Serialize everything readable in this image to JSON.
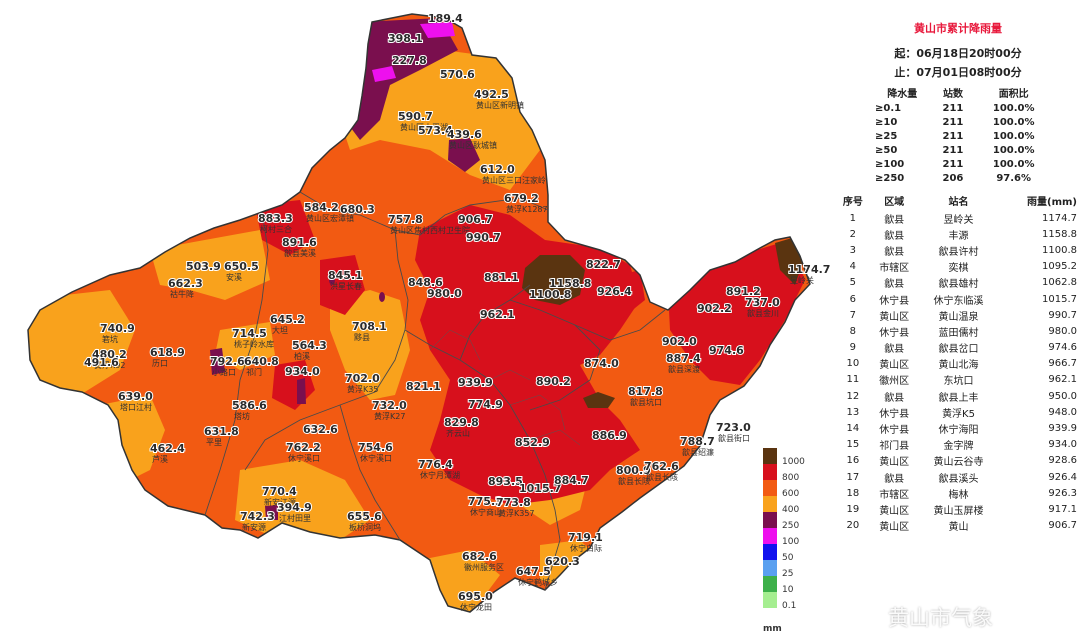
{
  "panel": {
    "title": "黄山市累计降雨量",
    "start": "起：06月18日20时00分",
    "end": "止：07月01日08时00分"
  },
  "summary_table": {
    "headers": [
      "降水量",
      "站数",
      "面积比"
    ],
    "rows": [
      [
        "≥0.1",
        "211",
        "100.0%"
      ],
      [
        "≥10",
        "211",
        "100.0%"
      ],
      [
        "≥25",
        "211",
        "100.0%"
      ],
      [
        "≥50",
        "211",
        "100.0%"
      ],
      [
        "≥100",
        "211",
        "100.0%"
      ],
      [
        "≥250",
        "206",
        "97.6%"
      ]
    ]
  },
  "rank_table": {
    "headers": [
      "序号",
      "区域",
      "站名",
      "雨量(mm)"
    ],
    "rows": [
      [
        "1",
        "歙县",
        "昱岭关",
        "1174.7"
      ],
      [
        "2",
        "歙县",
        "丰源",
        "1158.8"
      ],
      [
        "3",
        "歙县",
        "歙县许村",
        "1100.8"
      ],
      [
        "4",
        "市辖区",
        "奕棋",
        "1095.2"
      ],
      [
        "5",
        "歙县",
        "歙县雄村",
        "1062.8"
      ],
      [
        "6",
        "休宁县",
        "休宁东临溪",
        "1015.7"
      ],
      [
        "7",
        "黄山区",
        "黄山温泉",
        "990.7"
      ],
      [
        "8",
        "休宁县",
        "蓝田儒村",
        "980.0"
      ],
      [
        "9",
        "歙县",
        "歙县岔口",
        "974.6"
      ],
      [
        "10",
        "黄山区",
        "黄山北海",
        "966.7"
      ],
      [
        "11",
        "徽州区",
        "东坑口",
        "962.1"
      ],
      [
        "12",
        "歙县",
        "歙县上丰",
        "950.0"
      ],
      [
        "13",
        "休宁县",
        "黄浮K5",
        "948.0"
      ],
      [
        "14",
        "休宁县",
        "休宁海阳",
        "939.9"
      ],
      [
        "15",
        "祁门县",
        "金字牌",
        "934.0"
      ],
      [
        "16",
        "黄山区",
        "黄山云谷寺",
        "928.6"
      ],
      [
        "17",
        "歙县",
        "歙县溪头",
        "926.4"
      ],
      [
        "18",
        "市辖区",
        "梅林",
        "926.3"
      ],
      [
        "19",
        "黄山区",
        "黄山玉屏楼",
        "917.1"
      ],
      [
        "20",
        "黄山区",
        "黄山",
        "906.7"
      ]
    ]
  },
  "legend": {
    "unit": "mm",
    "items": [
      {
        "label": "1000",
        "color": "#5a3410"
      },
      {
        "label": "800",
        "color": "#d7101c"
      },
      {
        "label": "600",
        "color": "#f25a12"
      },
      {
        "label": "400",
        "color": "#f9a21c"
      },
      {
        "label": "250",
        "color": "#7a0f4e"
      },
      {
        "label": "100",
        "color": "#ee10ee"
      },
      {
        "label": "50",
        "color": "#1212ee"
      },
      {
        "label": "25",
        "color": "#5aa0f0"
      },
      {
        "label": "10",
        "color": "#3db04a"
      },
      {
        "label": "0.1",
        "color": "#a5ee90"
      }
    ]
  },
  "stations": [
    {
      "v": "189.4",
      "n": ""
    },
    {
      "v": "398.1",
      "n": ""
    },
    {
      "v": "227.8",
      "n": ""
    },
    {
      "v": "570.6",
      "n": ""
    },
    {
      "v": "492.5",
      "n": "黄山区新明镇"
    },
    {
      "v": "590.7",
      "n": "黄山区太平湖"
    },
    {
      "v": "573.4",
      "n": ""
    },
    {
      "v": "439.6",
      "n": "黄山区耿城镇"
    },
    {
      "v": "612.0",
      "n": "黄山区三口汪家岭"
    },
    {
      "v": "679.2",
      "n": "黄浮K1287"
    },
    {
      "v": "883.3",
      "n": "柯村三合"
    },
    {
      "v": "584.2",
      "n": "黄山区宏潭镇"
    },
    {
      "v": "680.3",
      "n": ""
    },
    {
      "v": "757.8",
      "n": "黄山区焦村西村卫生院"
    },
    {
      "v": "906.7",
      "n": ""
    },
    {
      "v": "891.6",
      "n": "歙县美溪"
    },
    {
      "v": "990.7",
      "n": ""
    },
    {
      "v": "503.9",
      "n": ""
    },
    {
      "v": "650.5",
      "n": "安溪"
    },
    {
      "v": "662.3",
      "n": "祜牛降"
    },
    {
      "v": "845.1",
      "n": "洪星长春"
    },
    {
      "v": "848.6",
      "n": ""
    },
    {
      "v": "881.1",
      "n": ""
    },
    {
      "v": "822.7",
      "n": ""
    },
    {
      "v": "1158.8",
      "n": ""
    },
    {
      "v": "1100.8",
      "n": ""
    },
    {
      "v": "926.4",
      "n": ""
    },
    {
      "v": "1174.7",
      "n": "昱岭关"
    },
    {
      "v": "980.0",
      "n": ""
    },
    {
      "v": "902.2",
      "n": ""
    },
    {
      "v": "891.2",
      "n": ""
    },
    {
      "v": "737.0",
      "n": "歙县金川"
    },
    {
      "v": "740.9",
      "n": "箬坑"
    },
    {
      "v": "645.2",
      "n": "大坦"
    },
    {
      "v": "714.5",
      "n": "桃子岭水库"
    },
    {
      "v": "708.1",
      "n": "黟县"
    },
    {
      "v": "962.1",
      "n": ""
    },
    {
      "v": "480.2",
      "n": "黄浮K92"
    },
    {
      "v": "491.6",
      "n": ""
    },
    {
      "v": "618.9",
      "n": "历口"
    },
    {
      "v": "564.3",
      "n": "柏溪"
    },
    {
      "v": "792.6",
      "n": "小路口"
    },
    {
      "v": "640.8",
      "n": "祁门"
    },
    {
      "v": "934.0",
      "n": ""
    },
    {
      "v": "902.0",
      "n": ""
    },
    {
      "v": "974.6",
      "n": ""
    },
    {
      "v": "874.0",
      "n": ""
    },
    {
      "v": "887.4",
      "n": "歙县深渡"
    },
    {
      "v": "702.0",
      "n": "黄浮K35"
    },
    {
      "v": "821.1",
      "n": ""
    },
    {
      "v": "939.9",
      "n": ""
    },
    {
      "v": "890.2",
      "n": ""
    },
    {
      "v": "817.8",
      "n": "歙县坑口"
    },
    {
      "v": "639.0",
      "n": "塔口江村"
    },
    {
      "v": "586.6",
      "n": "塔坊"
    },
    {
      "v": "732.0",
      "n": "黄浮K27"
    },
    {
      "v": "774.9",
      "n": ""
    },
    {
      "v": "829.8",
      "n": "齐云山"
    },
    {
      "v": "631.8",
      "n": "平里"
    },
    {
      "v": "632.6",
      "n": ""
    },
    {
      "v": "723.0",
      "n": "歙县街口"
    },
    {
      "v": "886.9",
      "n": ""
    },
    {
      "v": "852.9",
      "n": ""
    },
    {
      "v": "762.2",
      "n": "休宁溪口"
    },
    {
      "v": "754.6",
      "n": "休宁溪口"
    },
    {
      "v": "788.7",
      "n": "歙县绍濂"
    },
    {
      "v": "462.4",
      "n": "芦溪"
    },
    {
      "v": "776.4",
      "n": "休宁月潭湖"
    },
    {
      "v": "800.9",
      "n": "歙县长陔"
    },
    {
      "v": "762.6",
      "n": "歙县长陔"
    },
    {
      "v": "893.5",
      "n": ""
    },
    {
      "v": "1015.7",
      "n": ""
    },
    {
      "v": "884.7",
      "n": ""
    },
    {
      "v": "770.4",
      "n": "新安江源"
    },
    {
      "v": "775.3",
      "n": "休宁商山"
    },
    {
      "v": "773.8",
      "n": "黄浮K357"
    },
    {
      "v": "394.9",
      "n": "江村田里"
    },
    {
      "v": "742.3",
      "n": "新安源"
    },
    {
      "v": "655.6",
      "n": "板桥洞坞"
    },
    {
      "v": "719.1",
      "n": "休宁白际"
    },
    {
      "v": "682.6",
      "n": "徽州服务区"
    },
    {
      "v": "620.3",
      "n": ""
    },
    {
      "v": "647.5",
      "n": "休宁鹤城乡"
    },
    {
      "v": "695.0",
      "n": "休宁龙田"
    }
  ],
  "watermark": "黄山市气象"
}
